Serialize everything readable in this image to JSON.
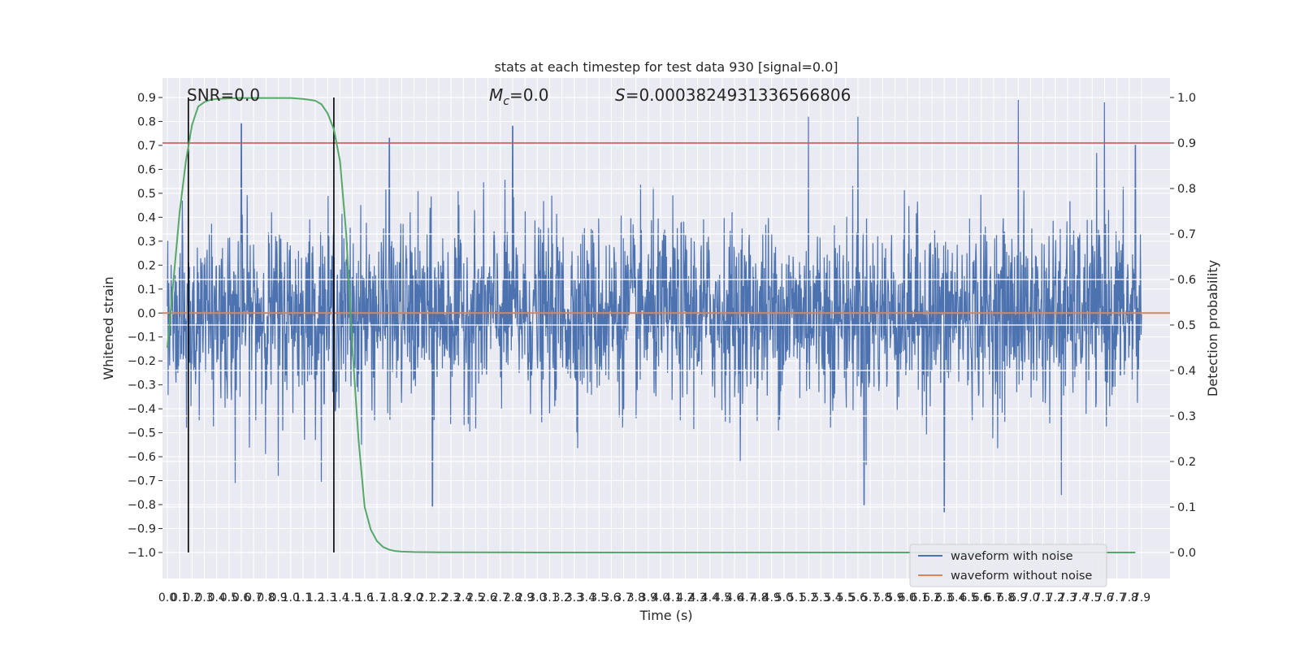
{
  "chart_data": {
    "type": "line",
    "title": "stats at each timestep for test data 930 [signal=0.0]",
    "xlabel": "Time (s)",
    "ylabel_left": "Whitened strain",
    "ylabel_right": "Detection probability",
    "xlim": [
      0.0,
      7.9
    ],
    "ylim_left": [
      -1.09,
      0.98
    ],
    "ylim_right": [
      -0.1,
      1.05
    ],
    "x_ticks": [
      "0.0",
      "0.1",
      "0.2",
      "0.3",
      "0.4",
      "0.5",
      "0.6",
      "0.7",
      "0.8",
      "0.9",
      "1.0",
      "1.1",
      "1.2",
      "1.3",
      "1.4",
      "1.5",
      "1.6",
      "1.7",
      "1.8",
      "1.9",
      "2.0",
      "2.1",
      "2.2",
      "2.3",
      "2.4",
      "2.5",
      "2.6",
      "2.7",
      "2.8",
      "2.9",
      "3.0",
      "3.1",
      "3.2",
      "3.3",
      "3.4",
      "3.5",
      "3.6",
      "3.7",
      "3.8",
      "3.9",
      "4.0",
      "4.1",
      "4.2",
      "4.3",
      "4.4",
      "4.5",
      "4.6",
      "4.7",
      "4.8",
      "4.9",
      "5.0",
      "5.1",
      "5.2",
      "5.3",
      "5.4",
      "5.5",
      "5.6",
      "5.7",
      "5.8",
      "5.9",
      "6.0",
      "6.1",
      "6.2",
      "6.3",
      "6.4",
      "6.5",
      "6.6",
      "6.7",
      "6.8",
      "6.9",
      "7.0",
      "7.1",
      "7.2",
      "7.3",
      "7.4",
      "7.5",
      "7.6",
      "7.7",
      "7.8",
      "7.9"
    ],
    "y_ticks_left": [
      "0.9",
      "0.8",
      "0.7",
      "0.6",
      "0.5",
      "0.4",
      "0.3",
      "0.2",
      "0.1",
      "0.0",
      "−0.1",
      "−0.2",
      "−0.3",
      "−0.4",
      "−0.5",
      "−0.6",
      "−0.7",
      "−0.8",
      "−0.9",
      "−1.0"
    ],
    "y_ticks_right": [
      "1.0",
      "0.9",
      "0.8",
      "0.7",
      "0.6",
      "0.5",
      "0.4",
      "0.3",
      "0.2",
      "0.1",
      "0.0"
    ],
    "annotations": {
      "snr": "SNR=0.0",
      "mc_symbol": "M",
      "mc_sub": "c",
      "mc_value": "=0.0",
      "s_symbol": "S",
      "s_value": "=0.0003824931336566806"
    },
    "threshold_line": {
      "axis": "right",
      "value": 0.9,
      "color": "#c44e52"
    },
    "vertical_lines": [
      0.17,
      1.35
    ],
    "noise": {
      "name": "waveform with noise",
      "color": "#4c72b0",
      "envelope_typical": 0.3,
      "peaks": [
        {
          "x": 0.6,
          "y": 0.79
        },
        {
          "x": 1.8,
          "y": 0.73
        },
        {
          "x": 2.8,
          "y": 0.78
        },
        {
          "x": 5.2,
          "y": 0.82
        },
        {
          "x": 5.6,
          "y": 0.82
        },
        {
          "x": 6.9,
          "y": 0.89
        },
        {
          "x": 7.6,
          "y": 0.88
        },
        {
          "x": 7.85,
          "y": 0.7
        },
        {
          "x": 2.15,
          "y": -0.81
        },
        {
          "x": 5.65,
          "y": -0.8
        },
        {
          "x": 6.3,
          "y": -0.83
        },
        {
          "x": 7.25,
          "y": -0.76
        },
        {
          "x": 0.55,
          "y": -0.71
        },
        {
          "x": 0.9,
          "y": -0.68
        }
      ]
    },
    "clean": {
      "name": "waveform without noise",
      "color": "#dd8452",
      "value": 0.0
    },
    "probability": {
      "color": "#55a868",
      "x": [
        0.0,
        0.05,
        0.1,
        0.15,
        0.2,
        0.25,
        0.3,
        0.35,
        0.4,
        0.5,
        0.6,
        0.8,
        1.0,
        1.1,
        1.2,
        1.25,
        1.3,
        1.35,
        1.4,
        1.45,
        1.5,
        1.55,
        1.6,
        1.65,
        1.7,
        1.75,
        1.8,
        1.85,
        1.9,
        2.0,
        2.2,
        3.0,
        5.0,
        7.0,
        7.85
      ],
      "y": [
        0.45,
        0.6,
        0.75,
        0.86,
        0.94,
        0.98,
        0.99,
        0.995,
        0.997,
        0.998,
        0.999,
        0.999,
        0.999,
        0.997,
        0.993,
        0.985,
        0.965,
        0.93,
        0.86,
        0.7,
        0.45,
        0.25,
        0.1,
        0.05,
        0.025,
        0.012,
        0.006,
        0.003,
        0.002,
        0.001,
        0.0005,
        0.0,
        0.0,
        0.0,
        0.0
      ]
    },
    "grid": true,
    "legend_position": "lower-right"
  }
}
